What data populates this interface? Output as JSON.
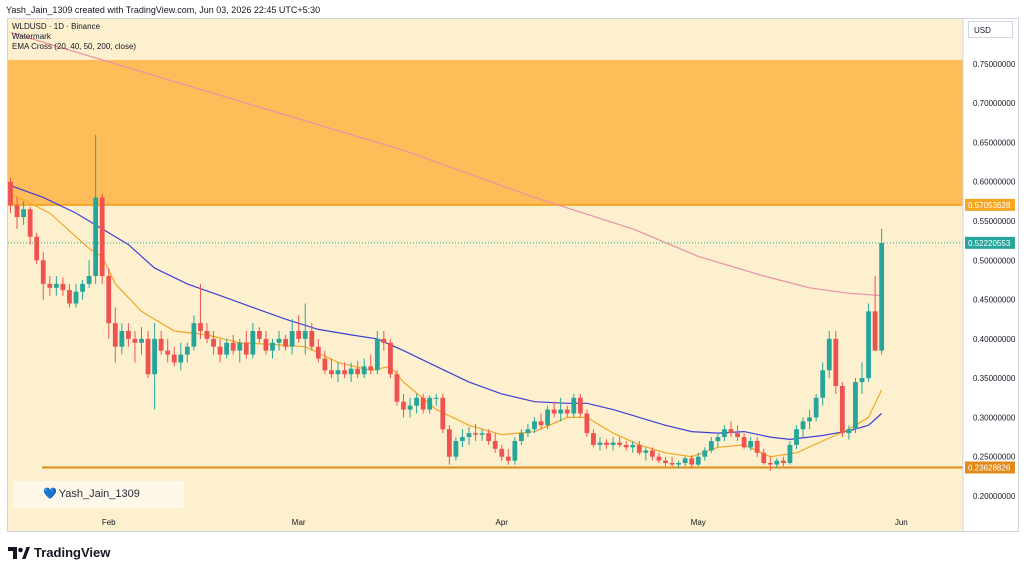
{
  "header": {
    "text": "Yash_Jain_1309 created with TradingView.com, Jun 03, 2026 22:45 UTC+5:30"
  },
  "legend": {
    "symbol": "WLDUSD · 1D · Binance",
    "watermark": "Watermark",
    "indicator": "EMA Cross (20, 40, 50, 200, close)"
  },
  "currency": "USD",
  "watermark_label": "Yash_Jain_1309",
  "brand": "TradingView",
  "colors": {
    "background": "#fdf0cf",
    "zone": "#ffb74d",
    "support": "#e08a1a",
    "resistance": "#f5a623",
    "up": "#26a69a",
    "down": "#ef5350",
    "ema_fast": "#f5a623",
    "ema_mid": "#3f3fd6",
    "ema_slow": "#e891a8"
  },
  "chart_data": {
    "type": "candlestick",
    "ylim": [
      0.19,
      0.77
    ],
    "y_ticks": [
      "0.75000000",
      "0.70000000",
      "0.65000000",
      "0.60000000",
      "0.55000000",
      "0.50000000",
      "0.45000000",
      "0.40000000",
      "0.35000000",
      "0.30000000",
      "0.25000000",
      "0.20000000"
    ],
    "x_ticks": [
      "Feb",
      "Mar",
      "Apr",
      "May",
      "Jun"
    ],
    "x_tick_days": [
      15,
      44,
      75,
      105,
      136
    ],
    "price_labels": [
      {
        "value": "0.57053628",
        "bg": "#f5a623"
      },
      {
        "value": "0.52220553",
        "bg": "#26a69a"
      },
      {
        "value": "0.23628826",
        "bg": "#e08a1a"
      }
    ],
    "resistance_zone": [
      0.5705,
      0.755
    ],
    "support_level": 0.23629,
    "last_price": 0.5222,
    "candles": [
      [
        0,
        0.6,
        0.605,
        0.56,
        0.57
      ],
      [
        1,
        0.57,
        0.58,
        0.54,
        0.555
      ],
      [
        2,
        0.555,
        0.575,
        0.545,
        0.565
      ],
      [
        3,
        0.565,
        0.568,
        0.52,
        0.53
      ],
      [
        4,
        0.53,
        0.535,
        0.495,
        0.5
      ],
      [
        5,
        0.5,
        0.51,
        0.45,
        0.47
      ],
      [
        6,
        0.47,
        0.48,
        0.455,
        0.465
      ],
      [
        7,
        0.465,
        0.48,
        0.455,
        0.47
      ],
      [
        8,
        0.47,
        0.478,
        0.455,
        0.462
      ],
      [
        9,
        0.462,
        0.47,
        0.44,
        0.445
      ],
      [
        10,
        0.445,
        0.47,
        0.44,
        0.46
      ],
      [
        11,
        0.46,
        0.475,
        0.45,
        0.47
      ],
      [
        12,
        0.47,
        0.5,
        0.465,
        0.48
      ],
      [
        13,
        0.48,
        0.66,
        0.47,
        0.58
      ],
      [
        14,
        0.58,
        0.585,
        0.47,
        0.48
      ],
      [
        15,
        0.48,
        0.49,
        0.4,
        0.42
      ],
      [
        16,
        0.42,
        0.44,
        0.37,
        0.39
      ],
      [
        17,
        0.39,
        0.42,
        0.38,
        0.41
      ],
      [
        18,
        0.41,
        0.42,
        0.39,
        0.4
      ],
      [
        19,
        0.4,
        0.41,
        0.37,
        0.395
      ],
      [
        20,
        0.395,
        0.415,
        0.38,
        0.4
      ],
      [
        21,
        0.4,
        0.41,
        0.35,
        0.355
      ],
      [
        22,
        0.355,
        0.42,
        0.31,
        0.4
      ],
      [
        23,
        0.4,
        0.41,
        0.38,
        0.385
      ],
      [
        24,
        0.385,
        0.4,
        0.37,
        0.38
      ],
      [
        25,
        0.38,
        0.39,
        0.365,
        0.37
      ],
      [
        26,
        0.37,
        0.395,
        0.36,
        0.38
      ],
      [
        27,
        0.38,
        0.395,
        0.37,
        0.39
      ],
      [
        28,
        0.39,
        0.43,
        0.385,
        0.42
      ],
      [
        29,
        0.42,
        0.47,
        0.4,
        0.41
      ],
      [
        30,
        0.41,
        0.42,
        0.395,
        0.4
      ],
      [
        31,
        0.4,
        0.41,
        0.38,
        0.39
      ],
      [
        32,
        0.39,
        0.4,
        0.37,
        0.38
      ],
      [
        33,
        0.38,
        0.4,
        0.375,
        0.395
      ],
      [
        34,
        0.395,
        0.405,
        0.38,
        0.385
      ],
      [
        35,
        0.385,
        0.4,
        0.37,
        0.395
      ],
      [
        36,
        0.395,
        0.41,
        0.375,
        0.38
      ],
      [
        37,
        0.38,
        0.42,
        0.375,
        0.41
      ],
      [
        38,
        0.41,
        0.415,
        0.395,
        0.4
      ],
      [
        39,
        0.4,
        0.41,
        0.38,
        0.385
      ],
      [
        40,
        0.385,
        0.4,
        0.375,
        0.395
      ],
      [
        41,
        0.395,
        0.41,
        0.385,
        0.4
      ],
      [
        42,
        0.4,
        0.405,
        0.385,
        0.39
      ],
      [
        43,
        0.39,
        0.425,
        0.38,
        0.41
      ],
      [
        44,
        0.41,
        0.43,
        0.395,
        0.4
      ],
      [
        45,
        0.4,
        0.445,
        0.38,
        0.41
      ],
      [
        46,
        0.41,
        0.42,
        0.385,
        0.39
      ],
      [
        47,
        0.39,
        0.4,
        0.37,
        0.375
      ],
      [
        48,
        0.375,
        0.385,
        0.355,
        0.36
      ],
      [
        49,
        0.36,
        0.375,
        0.35,
        0.355
      ],
      [
        50,
        0.355,
        0.37,
        0.345,
        0.36
      ],
      [
        51,
        0.36,
        0.37,
        0.35,
        0.355
      ],
      [
        52,
        0.355,
        0.37,
        0.345,
        0.362
      ],
      [
        53,
        0.362,
        0.372,
        0.35,
        0.355
      ],
      [
        54,
        0.355,
        0.375,
        0.35,
        0.365
      ],
      [
        55,
        0.365,
        0.38,
        0.355,
        0.36
      ],
      [
        56,
        0.36,
        0.41,
        0.355,
        0.4
      ],
      [
        57,
        0.4,
        0.41,
        0.385,
        0.395
      ],
      [
        58,
        0.395,
        0.4,
        0.35,
        0.355
      ],
      [
        59,
        0.355,
        0.36,
        0.315,
        0.32
      ],
      [
        60,
        0.32,
        0.33,
        0.3,
        0.31
      ],
      [
        61,
        0.31,
        0.325,
        0.3,
        0.315
      ],
      [
        62,
        0.315,
        0.33,
        0.305,
        0.325
      ],
      [
        63,
        0.325,
        0.33,
        0.305,
        0.31
      ],
      [
        64,
        0.31,
        0.328,
        0.305,
        0.325
      ],
      [
        65,
        0.325,
        0.33,
        0.315,
        0.325
      ],
      [
        66,
        0.325,
        0.33,
        0.28,
        0.285
      ],
      [
        67,
        0.285,
        0.29,
        0.24,
        0.25
      ],
      [
        68,
        0.25,
        0.275,
        0.245,
        0.27
      ],
      [
        69,
        0.27,
        0.285,
        0.262,
        0.275
      ],
      [
        70,
        0.275,
        0.288,
        0.265,
        0.28
      ],
      [
        71,
        0.28,
        0.292,
        0.27,
        0.278
      ],
      [
        72,
        0.278,
        0.285,
        0.27,
        0.28
      ],
      [
        73,
        0.28,
        0.285,
        0.265,
        0.27
      ],
      [
        74,
        0.27,
        0.28,
        0.255,
        0.26
      ],
      [
        75,
        0.26,
        0.265,
        0.245,
        0.25
      ],
      [
        76,
        0.25,
        0.26,
        0.24,
        0.245
      ],
      [
        77,
        0.245,
        0.275,
        0.24,
        0.27
      ],
      [
        78,
        0.27,
        0.285,
        0.265,
        0.28
      ],
      [
        79,
        0.28,
        0.292,
        0.275,
        0.285
      ],
      [
        80,
        0.285,
        0.3,
        0.28,
        0.295
      ],
      [
        81,
        0.295,
        0.305,
        0.285,
        0.29
      ],
      [
        82,
        0.29,
        0.315,
        0.285,
        0.31
      ],
      [
        83,
        0.31,
        0.32,
        0.3,
        0.305
      ],
      [
        84,
        0.305,
        0.325,
        0.295,
        0.31
      ],
      [
        85,
        0.31,
        0.315,
        0.3,
        0.305
      ],
      [
        86,
        0.305,
        0.33,
        0.3,
        0.325
      ],
      [
        87,
        0.325,
        0.33,
        0.3,
        0.305
      ],
      [
        88,
        0.305,
        0.31,
        0.275,
        0.28
      ],
      [
        89,
        0.28,
        0.285,
        0.262,
        0.265
      ],
      [
        90,
        0.265,
        0.275,
        0.258,
        0.268
      ],
      [
        91,
        0.268,
        0.272,
        0.26,
        0.265
      ],
      [
        92,
        0.265,
        0.275,
        0.258,
        0.268
      ],
      [
        93,
        0.268,
        0.275,
        0.262,
        0.265
      ],
      [
        94,
        0.265,
        0.27,
        0.258,
        0.262
      ],
      [
        95,
        0.262,
        0.27,
        0.255,
        0.265
      ],
      [
        96,
        0.265,
        0.27,
        0.252,
        0.255
      ],
      [
        97,
        0.255,
        0.262,
        0.245,
        0.258
      ],
      [
        98,
        0.258,
        0.262,
        0.245,
        0.25
      ],
      [
        99,
        0.25,
        0.255,
        0.242,
        0.245
      ],
      [
        100,
        0.245,
        0.25,
        0.238,
        0.242
      ],
      [
        101,
        0.242,
        0.25,
        0.238,
        0.24
      ],
      [
        102,
        0.24,
        0.245,
        0.235,
        0.242
      ],
      [
        103,
        0.242,
        0.25,
        0.238,
        0.248
      ],
      [
        104,
        0.248,
        0.252,
        0.235,
        0.24
      ],
      [
        105,
        0.24,
        0.255,
        0.238,
        0.25
      ],
      [
        106,
        0.25,
        0.262,
        0.245,
        0.258
      ],
      [
        107,
        0.258,
        0.275,
        0.255,
        0.27
      ],
      [
        108,
        0.27,
        0.28,
        0.262,
        0.275
      ],
      [
        109,
        0.275,
        0.29,
        0.27,
        0.285
      ],
      [
        110,
        0.285,
        0.295,
        0.275,
        0.28
      ],
      [
        111,
        0.28,
        0.29,
        0.27,
        0.275
      ],
      [
        112,
        0.275,
        0.28,
        0.26,
        0.262
      ],
      [
        113,
        0.262,
        0.275,
        0.258,
        0.27
      ],
      [
        114,
        0.27,
        0.275,
        0.25,
        0.255
      ],
      [
        115,
        0.255,
        0.26,
        0.24,
        0.242
      ],
      [
        116,
        0.242,
        0.25,
        0.232,
        0.24
      ],
      [
        117,
        0.24,
        0.248,
        0.235,
        0.245
      ],
      [
        118,
        0.245,
        0.25,
        0.238,
        0.242
      ],
      [
        119,
        0.242,
        0.27,
        0.24,
        0.265
      ],
      [
        120,
        0.265,
        0.29,
        0.26,
        0.285
      ],
      [
        121,
        0.285,
        0.3,
        0.275,
        0.295
      ],
      [
        122,
        0.295,
        0.31,
        0.285,
        0.3
      ],
      [
        123,
        0.3,
        0.33,
        0.295,
        0.325
      ],
      [
        124,
        0.325,
        0.37,
        0.315,
        0.36
      ],
      [
        125,
        0.36,
        0.41,
        0.35,
        0.4
      ],
      [
        126,
        0.4,
        0.41,
        0.33,
        0.34
      ],
      [
        127,
        0.34,
        0.345,
        0.275,
        0.28
      ],
      [
        128,
        0.28,
        0.29,
        0.272,
        0.285
      ],
      [
        129,
        0.285,
        0.35,
        0.28,
        0.345
      ],
      [
        130,
        0.345,
        0.37,
        0.33,
        0.35
      ],
      [
        131,
        0.35,
        0.445,
        0.345,
        0.435
      ],
      [
        132,
        0.435,
        0.48,
        0.385,
        0.385
      ],
      [
        133,
        0.385,
        0.54,
        0.38,
        0.522
      ]
    ],
    "ema_fast": [
      [
        0,
        0.585
      ],
      [
        6,
        0.56
      ],
      [
        10,
        0.53
      ],
      [
        12,
        0.515
      ],
      [
        14,
        0.505
      ],
      [
        16,
        0.47
      ],
      [
        20,
        0.435
      ],
      [
        25,
        0.41
      ],
      [
        30,
        0.405
      ],
      [
        35,
        0.395
      ],
      [
        40,
        0.393
      ],
      [
        45,
        0.39
      ],
      [
        50,
        0.37
      ],
      [
        55,
        0.36
      ],
      [
        58,
        0.365
      ],
      [
        60,
        0.345
      ],
      [
        65,
        0.31
      ],
      [
        70,
        0.29
      ],
      [
        75,
        0.278
      ],
      [
        80,
        0.282
      ],
      [
        85,
        0.3
      ],
      [
        88,
        0.3
      ],
      [
        92,
        0.28
      ],
      [
        96,
        0.265
      ],
      [
        100,
        0.255
      ],
      [
        104,
        0.25
      ],
      [
        108,
        0.262
      ],
      [
        112,
        0.265
      ],
      [
        116,
        0.25
      ],
      [
        120,
        0.255
      ],
      [
        124,
        0.27
      ],
      [
        128,
        0.285
      ],
      [
        131,
        0.3
      ],
      [
        133,
        0.335
      ]
    ],
    "ema_mid": [
      [
        0,
        0.595
      ],
      [
        5,
        0.58
      ],
      [
        10,
        0.56
      ],
      [
        14,
        0.54
      ],
      [
        18,
        0.52
      ],
      [
        22,
        0.49
      ],
      [
        27,
        0.47
      ],
      [
        32,
        0.455
      ],
      [
        37,
        0.44
      ],
      [
        42,
        0.425
      ],
      [
        47,
        0.412
      ],
      [
        52,
        0.405
      ],
      [
        56,
        0.4
      ],
      [
        60,
        0.385
      ],
      [
        65,
        0.365
      ],
      [
        70,
        0.345
      ],
      [
        75,
        0.33
      ],
      [
        80,
        0.32
      ],
      [
        85,
        0.318
      ],
      [
        88,
        0.318
      ],
      [
        92,
        0.31
      ],
      [
        96,
        0.3
      ],
      [
        100,
        0.29
      ],
      [
        104,
        0.282
      ],
      [
        108,
        0.28
      ],
      [
        112,
        0.282
      ],
      [
        116,
        0.275
      ],
      [
        119,
        0.272
      ],
      [
        124,
        0.277
      ],
      [
        128,
        0.283
      ],
      [
        131,
        0.29
      ],
      [
        133,
        0.305
      ]
    ],
    "ema_slow": [
      [
        0,
        0.79
      ],
      [
        20,
        0.74
      ],
      [
        40,
        0.69
      ],
      [
        60,
        0.64
      ],
      [
        80,
        0.58
      ],
      [
        95,
        0.54
      ],
      [
        105,
        0.505
      ],
      [
        115,
        0.48
      ],
      [
        122,
        0.465
      ],
      [
        128,
        0.458
      ],
      [
        133,
        0.455
      ]
    ]
  }
}
